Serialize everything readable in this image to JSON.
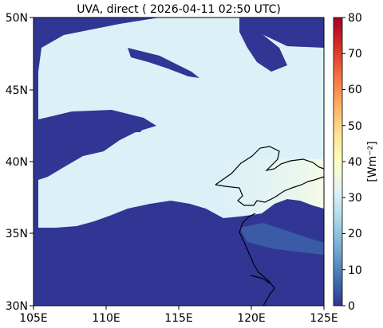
{
  "title": "UVA, direct ( 2026-04-11 02:50 UTC)",
  "x_ticks": [
    {
      "lon": 105,
      "label": "105E"
    },
    {
      "lon": 110,
      "label": "110E"
    },
    {
      "lon": 115,
      "label": "115E"
    },
    {
      "lon": 120,
      "label": "120E"
    },
    {
      "lon": 125,
      "label": "125E"
    }
  ],
  "y_ticks": [
    {
      "lat": 30,
      "label": "30N"
    },
    {
      "lat": 35,
      "label": "35N"
    },
    {
      "lat": 40,
      "label": "40N"
    },
    {
      "lat": 45,
      "label": "45N"
    },
    {
      "lat": 50,
      "label": "50N"
    }
  ],
  "extent": {
    "lon": [
      105,
      125
    ],
    "lat": [
      30,
      50
    ]
  },
  "colorbar": {
    "label": "[Wm⁻²]",
    "range": [
      0,
      80
    ],
    "ticks": [
      {
        "value": 0,
        "label": "0"
      },
      {
        "value": 10,
        "label": "10"
      },
      {
        "value": 20,
        "label": "20"
      },
      {
        "value": 30,
        "label": "30"
      },
      {
        "value": 40,
        "label": "40"
      },
      {
        "value": 50,
        "label": "50"
      },
      {
        "value": 60,
        "label": "60"
      },
      {
        "value": 70,
        "label": "70"
      },
      {
        "value": 80,
        "label": "80"
      }
    ],
    "colormap": [
      "#313695",
      "#4575b4",
      "#74add1",
      "#abd9e9",
      "#e0f3f8",
      "#ffffbf",
      "#fee090",
      "#fdae61",
      "#f46d43",
      "#d73027",
      "#a50026"
    ]
  },
  "colors": {
    "cloud_low": "#313695",
    "clear_sky": "#dcf1f7",
    "clear_bright": "#f1f9ea",
    "coastline": "#000000"
  }
}
